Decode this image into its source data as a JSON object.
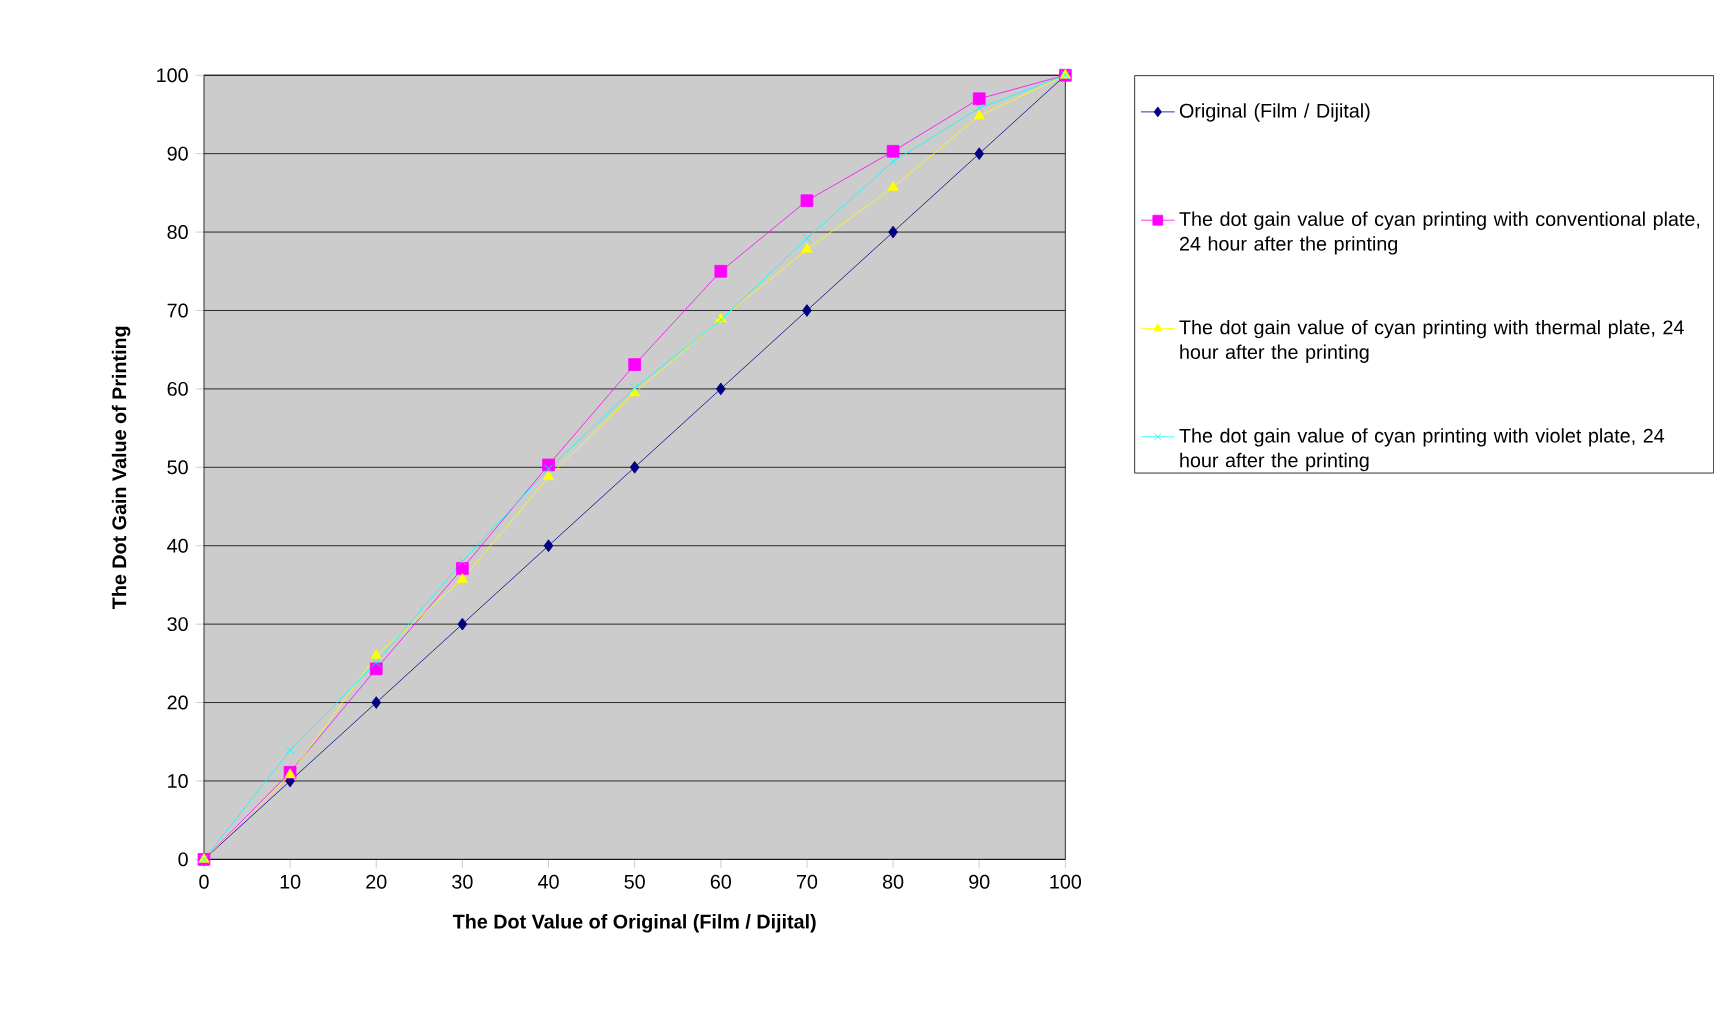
{
  "chart_data": {
    "type": "line",
    "xlabel": "The Dot Value of Original (Film / Dijital)",
    "ylabel": "The Dot Gain Value of  Printing",
    "x": [
      0,
      10,
      20,
      30,
      40,
      50,
      60,
      70,
      80,
      90,
      100
    ],
    "xlim": [
      0,
      100
    ],
    "xticks": [
      0,
      10,
      20,
      30,
      40,
      50,
      60,
      70,
      80,
      90,
      100
    ],
    "ylim": [
      0,
      100
    ],
    "yticks": [
      0,
      10,
      20,
      30,
      40,
      50,
      60,
      70,
      80,
      90,
      100
    ],
    "grid": "y",
    "legend": "right",
    "line_style": "solid",
    "series": [
      {
        "name": "Original (Film / Dijital)",
        "color": "#000080",
        "marker": "diamond",
        "values": [
          0,
          10,
          20,
          30,
          40,
          50,
          60,
          70,
          80,
          90,
          100
        ]
      },
      {
        "name": "The dot gain value of cyan printing with conventional plate, 24 hour after the printing",
        "color": "#ff00ff",
        "marker": "square",
        "values": [
          0,
          11.1,
          24.3,
          37.1,
          50.3,
          63.1,
          75,
          84,
          90.3,
          97,
          100
        ]
      },
      {
        "name": "The dot gain value of cyan printing with thermal plate, 24 hour after the printing",
        "color": "#ffff00",
        "marker": "triangle",
        "values": [
          0,
          10.8,
          26,
          35.7,
          48.8,
          59.5,
          68.9,
          77.8,
          85.7,
          94.8,
          100
        ]
      },
      {
        "name": "The dot gain value of cyan printing with violet plate, 24 hour after the printing",
        "color": "#00ffff",
        "marker": "cross",
        "values": [
          0,
          13.9,
          25.1,
          38,
          49.8,
          60.1,
          68.8,
          79.2,
          89,
          95.8,
          100
        ]
      }
    ]
  }
}
